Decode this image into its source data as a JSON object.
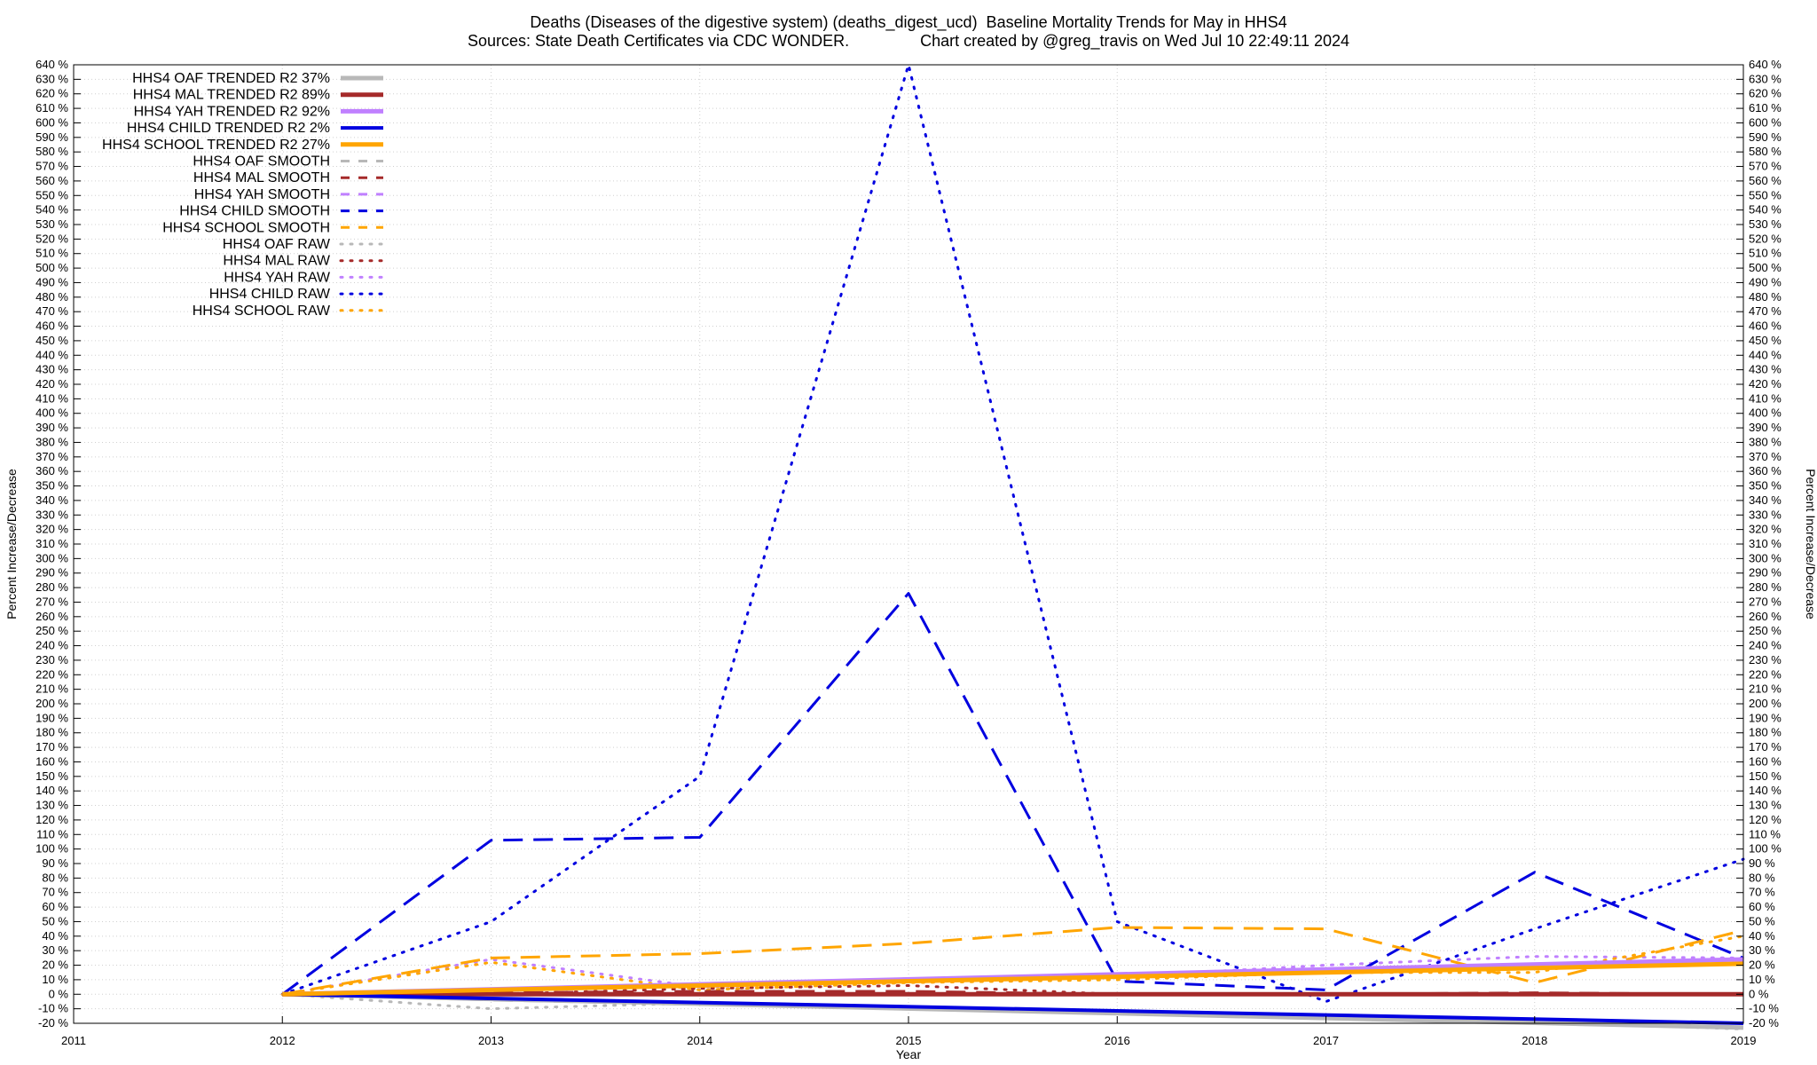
{
  "title_line1": "Deaths (Diseases of the digestive system) (deaths_digest_ucd)  Baseline Mortality Trends for May in HHS4",
  "title_line2": "Sources: State Death Certificates via CDC WONDER.                Chart created by @greg_travis on Wed Jul 10 22:49:11 2024",
  "chart_data": {
    "type": "line",
    "title": "Deaths (Diseases of the digestive system) (deaths_digest_ucd)  Baseline Mortality Trends for May in HHS4",
    "subtitle": "Sources: State Death Certificates via CDC WONDER.                Chart created by @greg_travis on Wed Jul 10 22:49:11 2024",
    "xlabel": "Year",
    "ylabel": "Percent Increase/Decrease",
    "y2label": "Percent Increase/Decrease",
    "xlim": [
      2011,
      2019
    ],
    "ylim": [
      -20,
      640
    ],
    "y_tick_step": 10,
    "y_tick_suffix": " %",
    "x_ticks": [
      2011,
      2012,
      2013,
      2014,
      2015,
      2016,
      2017,
      2018,
      2019
    ],
    "grid": true,
    "legend_position": "top-left",
    "series": [
      {
        "name": "HHS4 OAF TRENDED R2  37%",
        "color": "#b8b8b8",
        "style": "solid",
        "width": 5,
        "points": [
          [
            2012,
            0
          ],
          [
            2019,
            -23
          ]
        ]
      },
      {
        "name": "HHS4 MAL TRENDED R2  89%",
        "color": "#a52a2a",
        "style": "solid",
        "width": 5,
        "points": [
          [
            2012,
            0
          ],
          [
            2019,
            0
          ]
        ]
      },
      {
        "name": "HHS4 YAH TRENDED R2  92%",
        "color": "#c080ff",
        "style": "solid",
        "width": 5,
        "points": [
          [
            2012,
            0
          ],
          [
            2019,
            24
          ]
        ]
      },
      {
        "name": "HHS4 CHILD TRENDED R2   2%",
        "color": "#0000e0",
        "style": "solid",
        "width": 4,
        "points": [
          [
            2012,
            0
          ],
          [
            2019,
            -20
          ]
        ]
      },
      {
        "name": "HHS4 SCHOOL TRENDED R2  27%",
        "color": "#ffa500",
        "style": "solid",
        "width": 5,
        "points": [
          [
            2012,
            0
          ],
          [
            2019,
            21
          ]
        ]
      },
      {
        "name": "HHS4 OAF SMOOTH",
        "color": "#b8b8b8",
        "style": "dashed",
        "width": 3,
        "points": [
          [
            2012,
            0
          ],
          [
            2013,
            -4
          ],
          [
            2014,
            -7
          ],
          [
            2015,
            -10
          ],
          [
            2016,
            -13
          ],
          [
            2017,
            -16
          ],
          [
            2018,
            -20
          ],
          [
            2019,
            -23
          ]
        ]
      },
      {
        "name": "HHS4 MAL SMOOTH",
        "color": "#a52a2a",
        "style": "dashed",
        "width": 3,
        "points": [
          [
            2012,
            0
          ],
          [
            2013,
            1
          ],
          [
            2014,
            2
          ],
          [
            2015,
            2
          ],
          [
            2016,
            0
          ],
          [
            2017,
            0
          ],
          [
            2018,
            1
          ],
          [
            2019,
            0
          ]
        ]
      },
      {
        "name": "HHS4 YAH SMOOTH",
        "color": "#c080ff",
        "style": "dashed",
        "width": 3,
        "points": [
          [
            2012,
            0
          ],
          [
            2013,
            3
          ],
          [
            2014,
            6
          ],
          [
            2015,
            9
          ],
          [
            2016,
            13
          ],
          [
            2017,
            16
          ],
          [
            2018,
            20
          ],
          [
            2019,
            24
          ]
        ]
      },
      {
        "name": "HHS4 CHILD SMOOTH",
        "color": "#0000e0",
        "style": "dashed",
        "width": 3,
        "points": [
          [
            2012,
            0
          ],
          [
            2013,
            106
          ],
          [
            2014,
            108
          ],
          [
            2015,
            276
          ],
          [
            2016,
            9
          ],
          [
            2017,
            3
          ],
          [
            2018,
            84
          ],
          [
            2019,
            25
          ]
        ]
      },
      {
        "name": "HHS4 SCHOOL SMOOTH",
        "color": "#ffa500",
        "style": "dashed",
        "width": 3,
        "points": [
          [
            2012,
            0
          ],
          [
            2013,
            25
          ],
          [
            2014,
            28
          ],
          [
            2015,
            35
          ],
          [
            2016,
            46
          ],
          [
            2017,
            45
          ],
          [
            2018,
            8
          ],
          [
            2019,
            44
          ]
        ]
      },
      {
        "name": "HHS4 OAF RAW",
        "color": "#b8b8b8",
        "style": "dotted",
        "width": 3,
        "points": [
          [
            2012,
            0
          ],
          [
            2013,
            -10
          ],
          [
            2014,
            -6
          ],
          [
            2015,
            -10
          ],
          [
            2016,
            -12
          ],
          [
            2017,
            -15
          ],
          [
            2018,
            -19
          ],
          [
            2019,
            -24
          ]
        ]
      },
      {
        "name": "HHS4 MAL RAW",
        "color": "#a52a2a",
        "style": "dotted",
        "width": 3,
        "points": [
          [
            2012,
            0
          ],
          [
            2013,
            0
          ],
          [
            2014,
            4
          ],
          [
            2015,
            6
          ],
          [
            2016,
            0
          ],
          [
            2017,
            0
          ],
          [
            2018,
            0
          ],
          [
            2019,
            0
          ]
        ]
      },
      {
        "name": "HHS4 YAH RAW",
        "color": "#c080ff",
        "style": "dotted",
        "width": 3,
        "points": [
          [
            2012,
            0
          ],
          [
            2013,
            24
          ],
          [
            2014,
            5
          ],
          [
            2015,
            9
          ],
          [
            2016,
            12
          ],
          [
            2017,
            20
          ],
          [
            2018,
            26
          ],
          [
            2019,
            25
          ]
        ]
      },
      {
        "name": "HHS4 CHILD RAW",
        "color": "#0000e0",
        "style": "dotted",
        "width": 3,
        "points": [
          [
            2012,
            0
          ],
          [
            2013,
            50
          ],
          [
            2014,
            150
          ],
          [
            2015,
            640
          ],
          [
            2016,
            50
          ],
          [
            2017,
            -5
          ],
          [
            2018,
            45
          ],
          [
            2019,
            93
          ]
        ]
      },
      {
        "name": "HHS4 SCHOOL RAW",
        "color": "#ffa500",
        "style": "dotted",
        "width": 3,
        "points": [
          [
            2012,
            0
          ],
          [
            2013,
            22
          ],
          [
            2014,
            3
          ],
          [
            2015,
            8
          ],
          [
            2016,
            10
          ],
          [
            2017,
            15
          ],
          [
            2018,
            15
          ],
          [
            2019,
            40
          ]
        ]
      }
    ]
  }
}
